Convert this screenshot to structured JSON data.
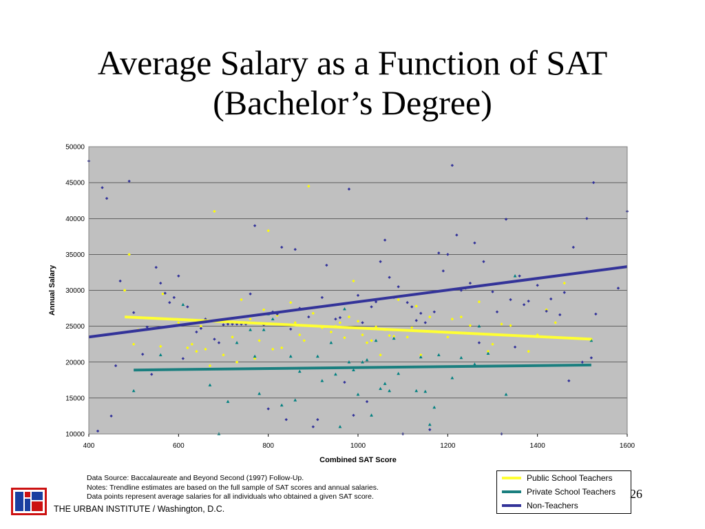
{
  "slide": {
    "title_line1": "Average Salary as a Function of SAT",
    "title_line2": "(Bachelor’s Degree)",
    "notes": [
      "Data Source: Baccalaureate and Beyond Second (1997) Follow-Up.",
      "Notes:  Trendline estimates are based on the full sample of SAT scores and annual salaries.",
      "Data points represent average salaries for all individuals who obtained a given SAT score."
    ],
    "page_number": "26",
    "footer": "THE URBAN INSTITUTE / Washington, D.C."
  },
  "chart_data": {
    "type": "scatter",
    "title": "",
    "xlabel": "Combined SAT Score",
    "ylabel": "Annual Salary",
    "xlim": [
      400,
      1600
    ],
    "ylim": [
      10000,
      50000
    ],
    "x_ticks": [
      400,
      600,
      800,
      1000,
      1200,
      1400,
      1600
    ],
    "y_ticks": [
      10000,
      15000,
      20000,
      25000,
      30000,
      35000,
      40000,
      45000,
      50000
    ],
    "plot_background": "#c0c0c0",
    "grid": true,
    "legend_position": "bottom-right",
    "series": [
      {
        "name": "Public School Teachers",
        "color": "#ffff00",
        "marker": "diamond",
        "trendline": {
          "x": [
            480,
            1520
          ],
          "y": [
            26300,
            23200
          ],
          "color": "#ffff33"
        },
        "points": [
          [
            480,
            30000
          ],
          [
            490,
            35000
          ],
          [
            500,
            22500
          ],
          [
            510,
            24500
          ],
          [
            560,
            22200
          ],
          [
            565,
            29500
          ],
          [
            600,
            25500
          ],
          [
            620,
            22000
          ],
          [
            630,
            22500
          ],
          [
            640,
            21500
          ],
          [
            650,
            25000
          ],
          [
            660,
            21800
          ],
          [
            670,
            19500
          ],
          [
            680,
            41000
          ],
          [
            700,
            21000
          ],
          [
            720,
            23500
          ],
          [
            730,
            20000
          ],
          [
            740,
            28700
          ],
          [
            750,
            25500
          ],
          [
            760,
            26000
          ],
          [
            770,
            20500
          ],
          [
            780,
            23000
          ],
          [
            790,
            27300
          ],
          [
            800,
            38300
          ],
          [
            810,
            21800
          ],
          [
            820,
            26500
          ],
          [
            830,
            22000
          ],
          [
            850,
            28300
          ],
          [
            860,
            25500
          ],
          [
            870,
            23800
          ],
          [
            880,
            23000
          ],
          [
            890,
            44500
          ],
          [
            900,
            26800
          ],
          [
            920,
            24800
          ],
          [
            940,
            24200
          ],
          [
            950,
            25000
          ],
          [
            960,
            25500
          ],
          [
            970,
            23400
          ],
          [
            980,
            26300
          ],
          [
            990,
            31300
          ],
          [
            1000,
            25700
          ],
          [
            1010,
            23800
          ],
          [
            1020,
            22700
          ],
          [
            1030,
            23000
          ],
          [
            1040,
            24900
          ],
          [
            1050,
            21000
          ],
          [
            1060,
            24500
          ],
          [
            1070,
            23700
          ],
          [
            1080,
            23600
          ],
          [
            1090,
            28700
          ],
          [
            1110,
            23500
          ],
          [
            1120,
            24800
          ],
          [
            1130,
            27800
          ],
          [
            1140,
            21000
          ],
          [
            1160,
            26300
          ],
          [
            1180,
            24200
          ],
          [
            1200,
            23500
          ],
          [
            1210,
            26000
          ],
          [
            1230,
            26300
          ],
          [
            1250,
            25100
          ],
          [
            1270,
            28400
          ],
          [
            1290,
            21500
          ],
          [
            1300,
            22500
          ],
          [
            1320,
            25300
          ],
          [
            1340,
            25100
          ],
          [
            1380,
            21500
          ],
          [
            1400,
            23800
          ],
          [
            1420,
            27300
          ],
          [
            1440,
            25500
          ],
          [
            1460,
            31000
          ],
          [
            1520,
            23200
          ]
        ]
      },
      {
        "name": "Private School Teachers",
        "color": "#008080",
        "marker": "triangle",
        "trendline": {
          "x": [
            500,
            1520
          ],
          "y": [
            18900,
            19600
          ],
          "color": "#1a7f7f"
        },
        "points": [
          [
            500,
            16000
          ],
          [
            560,
            21000
          ],
          [
            610,
            28000
          ],
          [
            670,
            16800
          ],
          [
            690,
            10000
          ],
          [
            710,
            14500
          ],
          [
            730,
            22700
          ],
          [
            760,
            24500
          ],
          [
            770,
            20800
          ],
          [
            780,
            15600
          ],
          [
            790,
            24500
          ],
          [
            800,
            26700
          ],
          [
            810,
            26000
          ],
          [
            830,
            14000
          ],
          [
            850,
            20800
          ],
          [
            860,
            14700
          ],
          [
            870,
            18700
          ],
          [
            910,
            20800
          ],
          [
            920,
            17400
          ],
          [
            940,
            22700
          ],
          [
            950,
            18300
          ],
          [
            960,
            11000
          ],
          [
            970,
            27400
          ],
          [
            980,
            20000
          ],
          [
            990,
            18900
          ],
          [
            1000,
            15500
          ],
          [
            1010,
            20000
          ],
          [
            1020,
            20300
          ],
          [
            1030,
            12600
          ],
          [
            1040,
            23000
          ],
          [
            1050,
            16300
          ],
          [
            1060,
            17000
          ],
          [
            1070,
            16000
          ],
          [
            1080,
            23300
          ],
          [
            1090,
            18400
          ],
          [
            1130,
            16000
          ],
          [
            1140,
            20700
          ],
          [
            1150,
            15900
          ],
          [
            1160,
            11300
          ],
          [
            1170,
            13700
          ],
          [
            1180,
            21000
          ],
          [
            1210,
            17800
          ],
          [
            1230,
            20600
          ],
          [
            1260,
            19700
          ],
          [
            1270,
            25000
          ],
          [
            1290,
            21200
          ],
          [
            1330,
            15500
          ],
          [
            1350,
            32000
          ],
          [
            1520,
            23000
          ]
        ]
      },
      {
        "name": "Non-Teachers",
        "color": "#333399",
        "marker": "diamond",
        "trendline": {
          "x": [
            400,
            1600
          ],
          "y": [
            23500,
            33300
          ],
          "color": "#333399"
        },
        "points": [
          [
            400,
            48000
          ],
          [
            420,
            10400
          ],
          [
            430,
            44300
          ],
          [
            440,
            42800
          ],
          [
            450,
            12500
          ],
          [
            460,
            19500
          ],
          [
            470,
            31300
          ],
          [
            490,
            45200
          ],
          [
            500,
            26900
          ],
          [
            520,
            21100
          ],
          [
            530,
            24900
          ],
          [
            540,
            18300
          ],
          [
            550,
            33200
          ],
          [
            560,
            31000
          ],
          [
            570,
            29600
          ],
          [
            580,
            28300
          ],
          [
            590,
            29000
          ],
          [
            600,
            32000
          ],
          [
            610,
            20500
          ],
          [
            620,
            27700
          ],
          [
            640,
            24200
          ],
          [
            650,
            24700
          ],
          [
            660,
            26000
          ],
          [
            680,
            23200
          ],
          [
            690,
            22700
          ],
          [
            700,
            25200
          ],
          [
            710,
            25300
          ],
          [
            720,
            25300
          ],
          [
            730,
            25300
          ],
          [
            740,
            25300
          ],
          [
            750,
            25300
          ],
          [
            760,
            29500
          ],
          [
            770,
            39000
          ],
          [
            790,
            25200
          ],
          [
            800,
            13500
          ],
          [
            810,
            27000
          ],
          [
            820,
            26700
          ],
          [
            830,
            36000
          ],
          [
            840,
            12000
          ],
          [
            850,
            24600
          ],
          [
            860,
            35700
          ],
          [
            870,
            27500
          ],
          [
            890,
            26300
          ],
          [
            900,
            11000
          ],
          [
            910,
            12000
          ],
          [
            920,
            29000
          ],
          [
            930,
            33500
          ],
          [
            950,
            26000
          ],
          [
            960,
            26200
          ],
          [
            970,
            17200
          ],
          [
            980,
            44100
          ],
          [
            990,
            12600
          ],
          [
            1000,
            29300
          ],
          [
            1010,
            25500
          ],
          [
            1020,
            14500
          ],
          [
            1030,
            27700
          ],
          [
            1040,
            28400
          ],
          [
            1050,
            34000
          ],
          [
            1060,
            37000
          ],
          [
            1070,
            31800
          ],
          [
            1080,
            29000
          ],
          [
            1090,
            30500
          ],
          [
            1100,
            10000
          ],
          [
            1110,
            28300
          ],
          [
            1120,
            27700
          ],
          [
            1130,
            25800
          ],
          [
            1140,
            26800
          ],
          [
            1150,
            25500
          ],
          [
            1160,
            10600
          ],
          [
            1170,
            27000
          ],
          [
            1180,
            35200
          ],
          [
            1190,
            32700
          ],
          [
            1200,
            35000
          ],
          [
            1210,
            47400
          ],
          [
            1220,
            37700
          ],
          [
            1230,
            30000
          ],
          [
            1240,
            30300
          ],
          [
            1250,
            31000
          ],
          [
            1260,
            36600
          ],
          [
            1270,
            22700
          ],
          [
            1280,
            34000
          ],
          [
            1300,
            29800
          ],
          [
            1310,
            27000
          ],
          [
            1320,
            10000
          ],
          [
            1330,
            39900
          ],
          [
            1340,
            28700
          ],
          [
            1350,
            22100
          ],
          [
            1360,
            32000
          ],
          [
            1370,
            28000
          ],
          [
            1380,
            28500
          ],
          [
            1400,
            30700
          ],
          [
            1420,
            27100
          ],
          [
            1430,
            28800
          ],
          [
            1450,
            26600
          ],
          [
            1460,
            29700
          ],
          [
            1470,
            17400
          ],
          [
            1480,
            36000
          ],
          [
            1500,
            20000
          ],
          [
            1510,
            40000
          ],
          [
            1520,
            20600
          ],
          [
            1525,
            45000
          ],
          [
            1530,
            26700
          ],
          [
            1580,
            30300
          ],
          [
            1600,
            41000
          ]
        ]
      }
    ]
  }
}
